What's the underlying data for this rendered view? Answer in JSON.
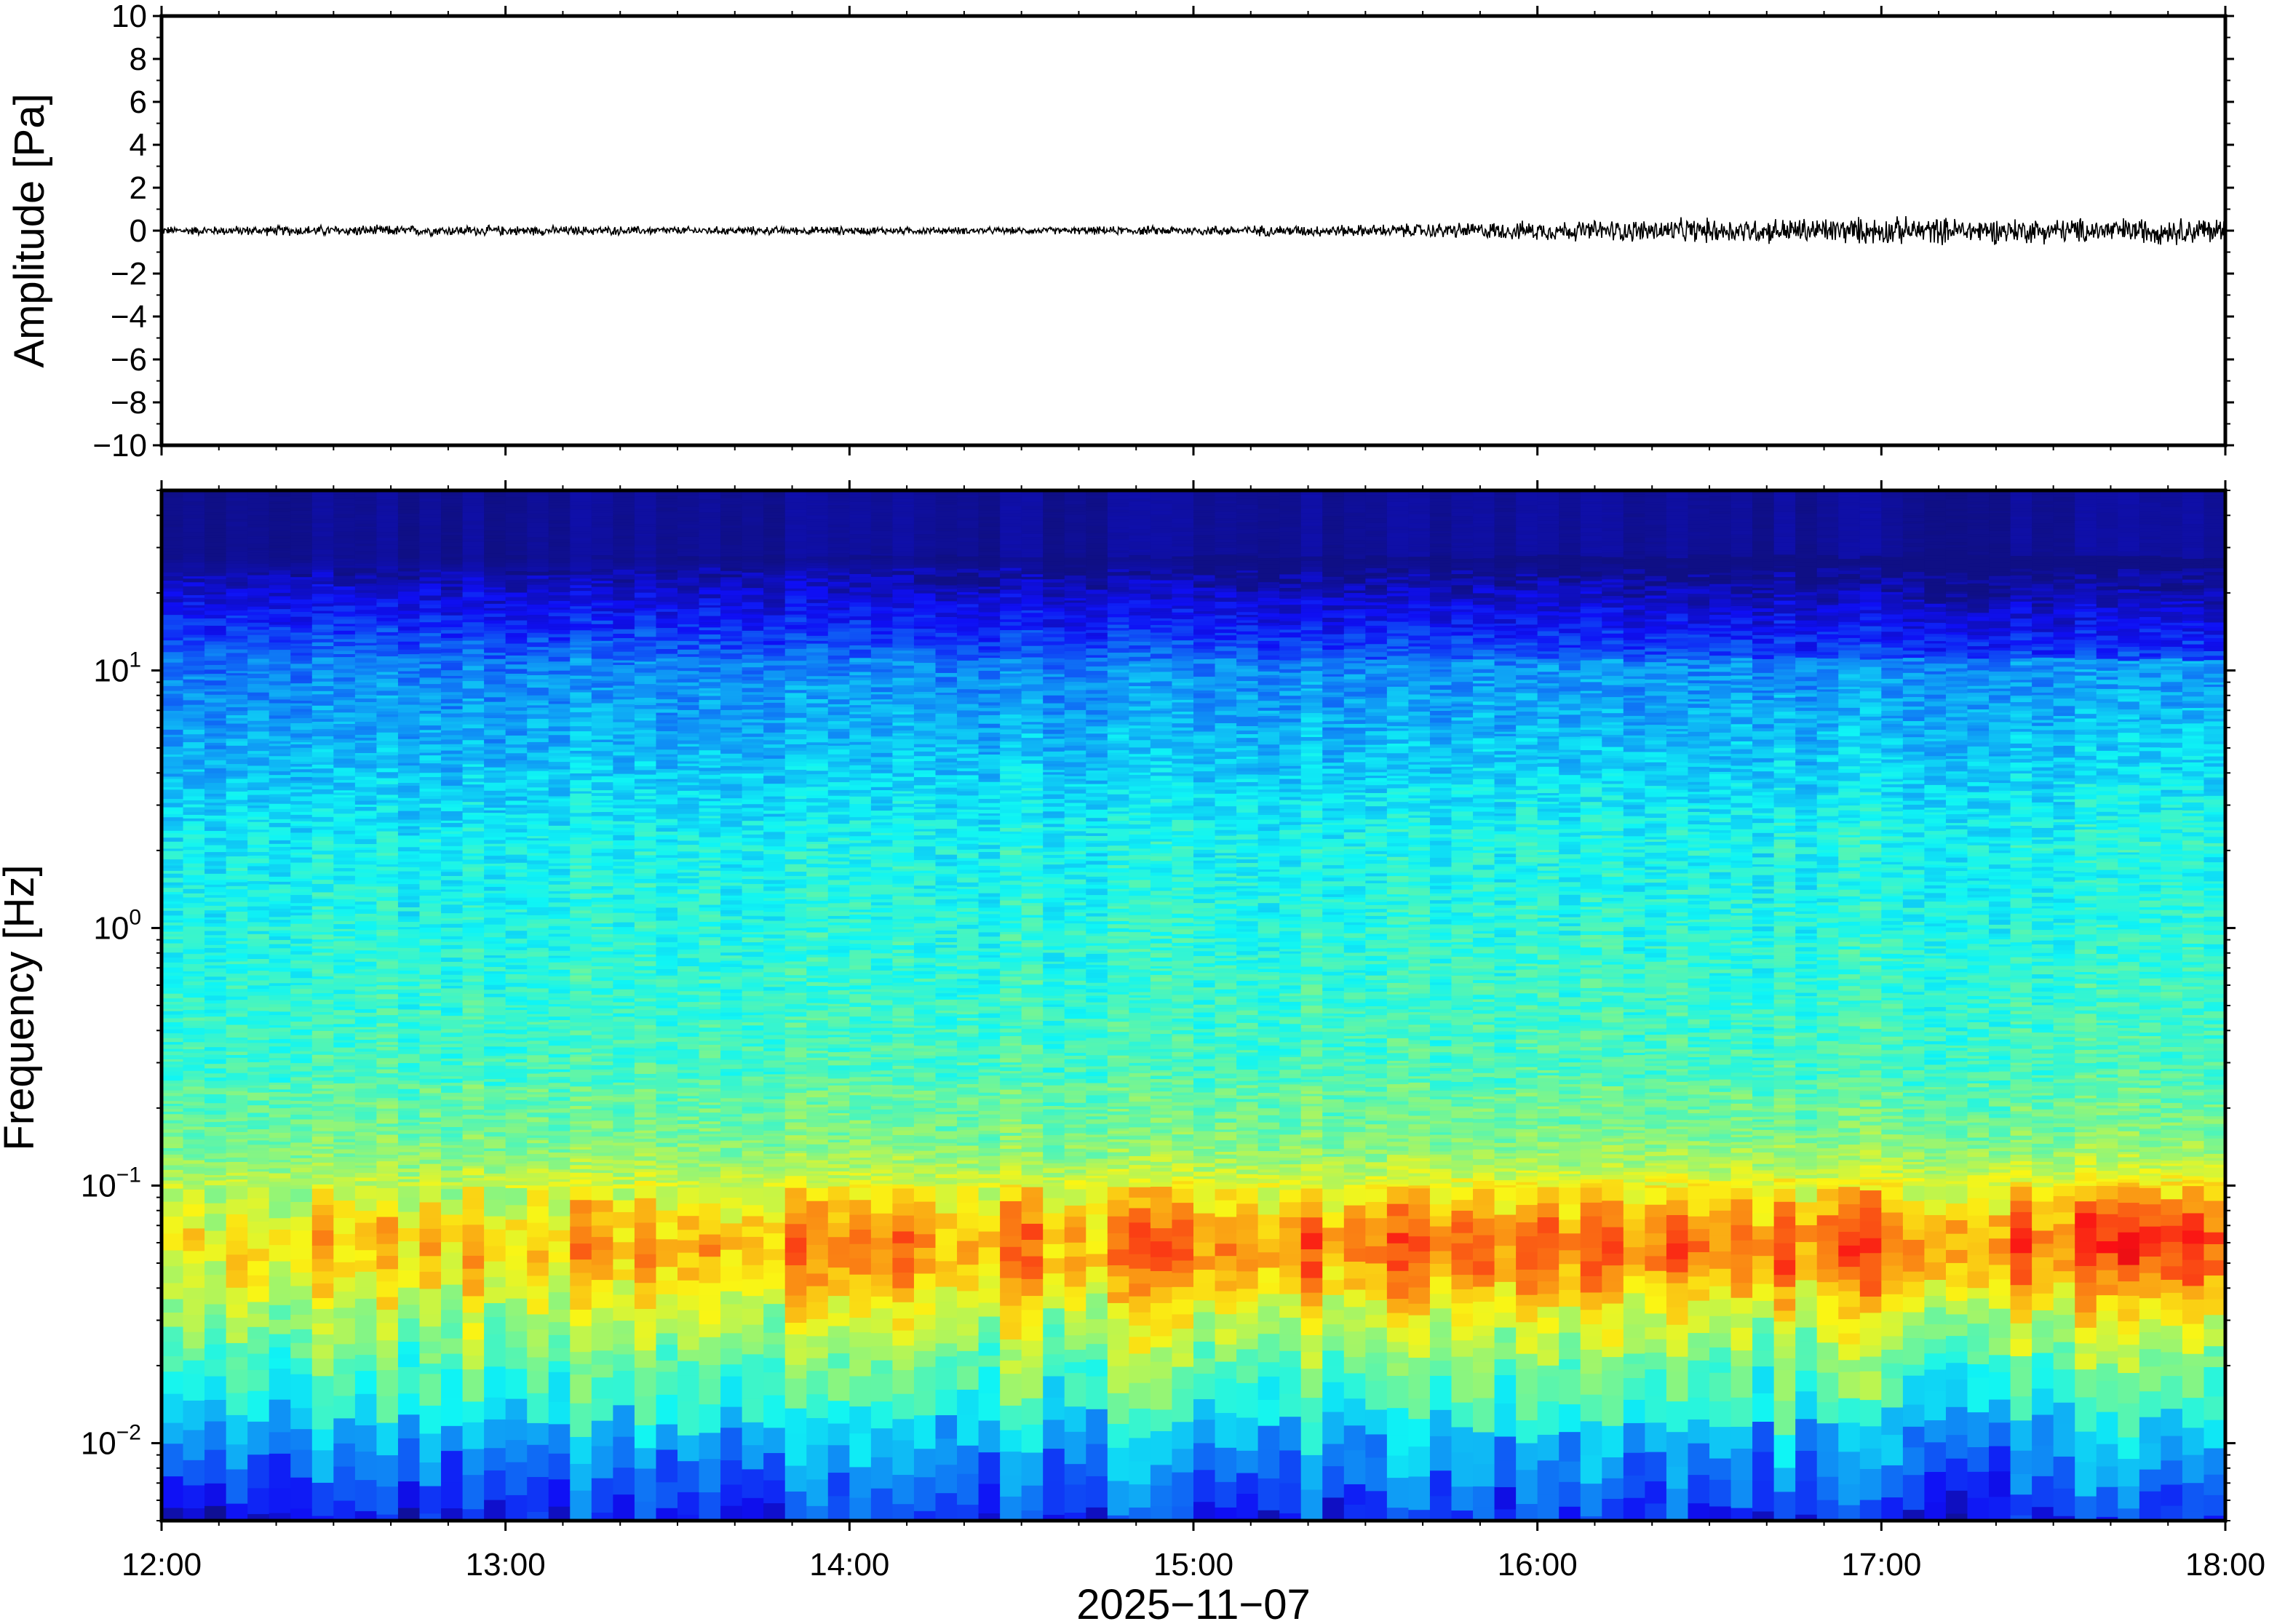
{
  "chart_data": [
    {
      "type": "line",
      "panel": "waveform",
      "title": "",
      "xlabel": "",
      "ylabel": "Amplitude [Pa]",
      "ylim": [
        -10,
        10
      ],
      "yticks": [
        {
          "value": 10,
          "label": "10"
        },
        {
          "value": 8,
          "label": "8"
        },
        {
          "value": 6,
          "label": "6"
        },
        {
          "value": 4,
          "label": "4"
        },
        {
          "value": 2,
          "label": "2"
        },
        {
          "value": 0,
          "label": "0"
        },
        {
          "value": -2,
          "label": "−2"
        },
        {
          "value": -4,
          "label": "−4"
        },
        {
          "value": -6,
          "label": "−6"
        },
        {
          "value": -8,
          "label": "−8"
        },
        {
          "value": -10,
          "label": "−10"
        }
      ],
      "xlim": [
        "2025-11-07 12:00",
        "2025-11-07 18:00"
      ],
      "series": [
        {
          "color": "#000000",
          "x": [
            "12:00",
            "12:30",
            "13:00",
            "13:30",
            "14:00",
            "14:30",
            "15:00",
            "15:30",
            "16:00",
            "16:30",
            "17:00",
            "17:30",
            "18:00"
          ],
          "envelope": [
            0.15,
            0.2,
            0.18,
            0.15,
            0.15,
            0.12,
            0.18,
            0.22,
            0.35,
            0.45,
            0.5,
            0.45,
            0.5
          ]
        }
      ],
      "grid": false
    },
    {
      "type": "heatmap",
      "panel": "spectrogram",
      "title": "",
      "xlabel": "2025−11−07",
      "ylabel": "Frequency [Hz]",
      "yscale": "log",
      "ylim": [
        0.005,
        50
      ],
      "yticks": [
        {
          "value": 0.01,
          "base": "10",
          "exp": "−2"
        },
        {
          "value": 0.1,
          "base": "10",
          "exp": "−1"
        },
        {
          "value": 1,
          "base": "10",
          "exp": "0"
        },
        {
          "value": 10,
          "base": "10",
          "exp": "1"
        }
      ],
      "xlim": [
        "12:00",
        "18:00"
      ],
      "xticks": [
        "12:00",
        "13:00",
        "14:00",
        "15:00",
        "16:00",
        "17:00",
        "18:00"
      ],
      "colormap": "jet",
      "colors": {
        "high_freq": "#0b0b78",
        "mid": "#6fe0c8",
        "low_band": "#f9b95a",
        "lowest": "#2f8ff0"
      },
      "grid": false
    }
  ]
}
